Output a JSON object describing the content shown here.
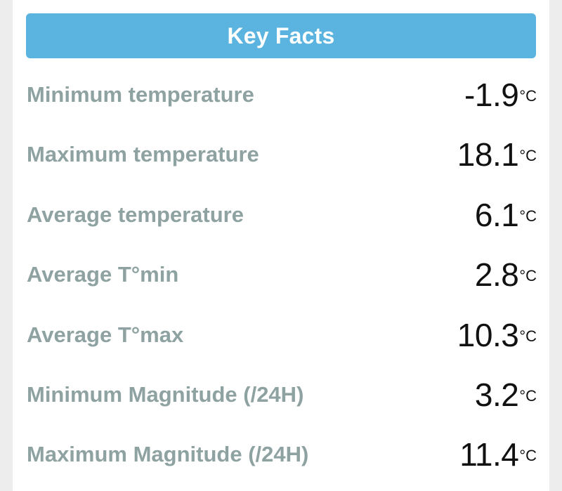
{
  "header": {
    "title": "Key Facts"
  },
  "facts": [
    {
      "label": "Minimum temperature",
      "value": "-1.9",
      "unit": "°C"
    },
    {
      "label": "Maximum temperature",
      "value": "18.1",
      "unit": "°C"
    },
    {
      "label": "Average temperature",
      "value": "6.1",
      "unit": "°C"
    },
    {
      "label": "Average T°min",
      "value": "2.8",
      "unit": "°C"
    },
    {
      "label": "Average T°max",
      "value": "10.3",
      "unit": "°C"
    },
    {
      "label": "Minimum Magnitude (/24H)",
      "value": "3.2",
      "unit": "°C"
    },
    {
      "label": "Maximum Magnitude (/24H)",
      "value": "11.4",
      "unit": "°C"
    }
  ],
  "colors": {
    "header_bg": "#5ab4df",
    "label_text": "#8fa2a2",
    "value_text": "#111111",
    "page_bg": "#ededed"
  }
}
